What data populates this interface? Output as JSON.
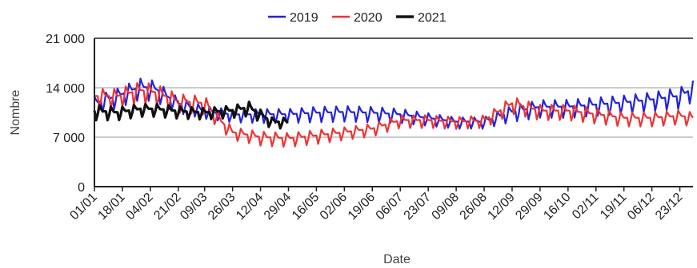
{
  "chart_data": {
    "type": "line",
    "title": "",
    "xlabel": "Date",
    "ylabel": "Nombre",
    "ylim": [
      0,
      21000
    ],
    "yticks": [
      {
        "value": 0,
        "label": "0"
      },
      {
        "value": 7000,
        "label": "7 000"
      },
      {
        "value": 14000,
        "label": "14 000"
      },
      {
        "value": 21000,
        "label": "21 000"
      }
    ],
    "xlim": [
      "01/01",
      "31/12"
    ],
    "xticks": [
      {
        "label": "01/01",
        "day": 0
      },
      {
        "label": "18/01",
        "day": 17
      },
      {
        "label": "04/02",
        "day": 34
      },
      {
        "label": "21/02",
        "day": 51
      },
      {
        "label": "09/03",
        "day": 67
      },
      {
        "label": "26/03",
        "day": 84
      },
      {
        "label": "12/04",
        "day": 101
      },
      {
        "label": "29/04",
        "day": 118
      },
      {
        "label": "16/05",
        "day": 135
      },
      {
        "label": "02/06",
        "day": 152
      },
      {
        "label": "19/06",
        "day": 169
      },
      {
        "label": "06/07",
        "day": 186
      },
      {
        "label": "23/07",
        "day": 203
      },
      {
        "label": "09/08",
        "day": 220
      },
      {
        "label": "26/08",
        "day": 237
      },
      {
        "label": "12/09",
        "day": 254
      },
      {
        "label": "29/09",
        "day": 271
      },
      {
        "label": "16/10",
        "day": 288
      },
      {
        "label": "02/11",
        "day": 305
      },
      {
        "label": "19/11",
        "day": 322
      },
      {
        "label": "06/12",
        "day": 339
      },
      {
        "label": "23/12",
        "day": 356
      }
    ],
    "grid": true,
    "legend": "top-center",
    "series": [
      {
        "name": "2019",
        "color": "#2222dd",
        "points": [
          {
            "x": "01/01",
            "base": 11500,
            "amp": 2500
          },
          {
            "x": "15/01",
            "base": 12500,
            "amp": 2800
          },
          {
            "x": "29/01",
            "base": 13800,
            "amp": 3000
          },
          {
            "x": "07/02",
            "base": 13500,
            "amp": 3000
          },
          {
            "x": "21/02",
            "base": 11500,
            "amp": 2200
          },
          {
            "x": "09/03",
            "base": 10500,
            "amp": 1800
          },
          {
            "x": "26/03",
            "base": 10000,
            "amp": 1800
          },
          {
            "x": "12/04",
            "base": 10000,
            "amp": 2000
          },
          {
            "x": "29/04",
            "base": 10000,
            "amp": 2000
          },
          {
            "x": "16/05",
            "base": 10200,
            "amp": 2200
          },
          {
            "x": "02/06",
            "base": 10300,
            "amp": 2200
          },
          {
            "x": "19/06",
            "base": 10200,
            "amp": 2200
          },
          {
            "x": "06/07",
            "base": 10000,
            "amp": 2000
          },
          {
            "x": "23/07",
            "base": 9500,
            "amp": 1800
          },
          {
            "x": "09/08",
            "base": 9000,
            "amp": 1600
          },
          {
            "x": "26/08",
            "base": 9000,
            "amp": 1600
          },
          {
            "x": "12/09",
            "base": 10300,
            "amp": 2300
          },
          {
            "x": "29/09",
            "base": 11000,
            "amp": 2500
          },
          {
            "x": "16/10",
            "base": 11000,
            "amp": 2600
          },
          {
            "x": "02/11",
            "base": 11300,
            "amp": 2600
          },
          {
            "x": "19/11",
            "base": 11600,
            "amp": 2600
          },
          {
            "x": "06/12",
            "base": 12000,
            "amp": 2700
          },
          {
            "x": "23/12",
            "base": 12500,
            "amp": 3000
          },
          {
            "x": "31/12",
            "base": 13500,
            "amp": 3000
          }
        ]
      },
      {
        "name": "2020",
        "color": "#ee3333",
        "points": [
          {
            "x": "01/01",
            "base": 12500,
            "amp": 2700
          },
          {
            "x": "15/01",
            "base": 12500,
            "amp": 2700
          },
          {
            "x": "29/01",
            "base": 13300,
            "amp": 3000
          },
          {
            "x": "07/02",
            "base": 13000,
            "amp": 3000
          },
          {
            "x": "21/02",
            "base": 11800,
            "amp": 2600
          },
          {
            "x": "09/03",
            "base": 11500,
            "amp": 2600
          },
          {
            "x": "19/03",
            "base": 9000,
            "amp": 2200
          },
          {
            "x": "26/03",
            "base": 7500,
            "amp": 1800
          },
          {
            "x": "12/04",
            "base": 6800,
            "amp": 2000
          },
          {
            "x": "29/04",
            "base": 6600,
            "amp": 2000
          },
          {
            "x": "16/05",
            "base": 7000,
            "amp": 2000
          },
          {
            "x": "02/06",
            "base": 7500,
            "amp": 1800
          },
          {
            "x": "19/06",
            "base": 8000,
            "amp": 1800
          },
          {
            "x": "06/07",
            "base": 9200,
            "amp": 1800
          },
          {
            "x": "23/07",
            "base": 9200,
            "amp": 1800
          },
          {
            "x": "09/08",
            "base": 9000,
            "amp": 1700
          },
          {
            "x": "26/08",
            "base": 9200,
            "amp": 1800
          },
          {
            "x": "12/09",
            "base": 11500,
            "amp": 2400
          },
          {
            "x": "29/09",
            "base": 10500,
            "amp": 2200
          },
          {
            "x": "16/10",
            "base": 10500,
            "amp": 2200
          },
          {
            "x": "02/11",
            "base": 10000,
            "amp": 2200
          },
          {
            "x": "19/11",
            "base": 9500,
            "amp": 2000
          },
          {
            "x": "06/12",
            "base": 9500,
            "amp": 2000
          },
          {
            "x": "23/12",
            "base": 9800,
            "amp": 2000
          },
          {
            "x": "31/12",
            "base": 9500,
            "amp": 2000
          }
        ]
      },
      {
        "name": "2021",
        "color": "#111111",
        "points": [
          {
            "x": "01/01",
            "base": 10500,
            "amp": 2200
          },
          {
            "x": "15/01",
            "base": 10300,
            "amp": 1800
          },
          {
            "x": "29/01",
            "base": 10800,
            "amp": 1800
          },
          {
            "x": "07/02",
            "base": 10800,
            "amp": 1800
          },
          {
            "x": "21/02",
            "base": 10500,
            "amp": 1700
          },
          {
            "x": "09/03",
            "base": 10300,
            "amp": 1600
          },
          {
            "x": "26/03",
            "base": 10600,
            "amp": 1700
          },
          {
            "x": "05/04",
            "base": 11000,
            "amp": 2000
          },
          {
            "x": "19/04",
            "base": 9000,
            "amp": 1600
          },
          {
            "x": "29/04",
            "base": 9000,
            "amp": 1400
          }
        ]
      }
    ]
  }
}
